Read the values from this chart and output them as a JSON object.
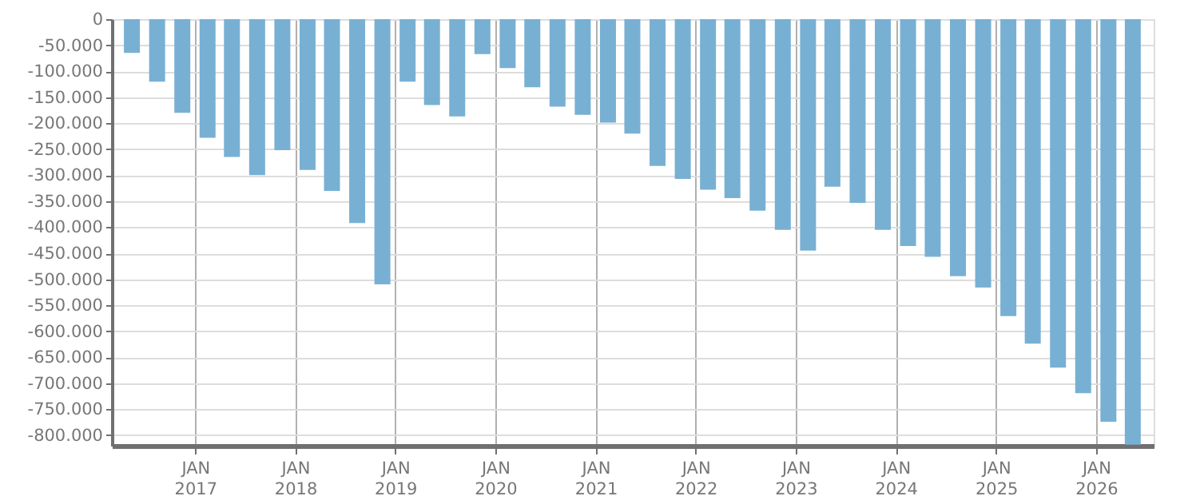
{
  "chart_data": {
    "type": "bar",
    "color": "#78b0d3",
    "grid": true,
    "x": [
      "2016-05-15",
      "2016-08-15",
      "2016-11-15",
      "2017-02-15",
      "2017-05-15",
      "2017-08-15",
      "2017-11-15",
      "2018-02-15",
      "2018-05-15",
      "2018-08-15",
      "2018-11-15",
      "2019-02-15",
      "2019-05-15",
      "2019-08-15",
      "2019-11-15",
      "2020-02-15",
      "2020-05-15",
      "2020-08-15",
      "2020-11-15",
      "2021-02-15",
      "2021-05-15",
      "2021-08-15",
      "2021-11-15",
      "2022-02-15",
      "2022-05-15",
      "2022-08-15",
      "2022-11-15",
      "2023-02-15",
      "2023-05-15",
      "2023-08-15",
      "2023-11-15",
      "2024-02-15",
      "2024-05-15",
      "2024-08-15",
      "2024-11-15",
      "2025-02-15",
      "2025-05-15",
      "2025-08-15",
      "2025-11-15",
      "2026-02-15",
      "2026-05-15"
    ],
    "values": [
      -65000,
      -120000,
      -180000,
      -228000,
      -265000,
      -300000,
      -252000,
      -290000,
      -330000,
      -392000,
      -510000,
      -120000,
      -165000,
      -187000,
      -67000,
      -94000,
      -131000,
      -168000,
      -184000,
      -199000,
      -220000,
      -282000,
      -307000,
      -328000,
      -344000,
      -368000,
      -405000,
      -445000,
      -322000,
      -353000,
      -405000,
      -436000,
      -457000,
      -494000,
      -516000,
      -571000,
      -624000,
      -670000,
      -719000,
      -774000,
      -818000
    ],
    "xlim": [
      "2016-04-01",
      "2026-07-01"
    ],
    "xticks": [
      {
        "value": "2017-01-01",
        "label": "JAN 2017"
      },
      {
        "value": "2018-01-01",
        "label": "JAN 2018"
      },
      {
        "value": "2019-01-01",
        "label": "JAN 2019"
      },
      {
        "value": "2020-01-01",
        "label": "JAN 2020"
      },
      {
        "value": "2021-01-01",
        "label": "JAN 2021"
      },
      {
        "value": "2022-01-01",
        "label": "JAN 2022"
      },
      {
        "value": "2023-01-01",
        "label": "JAN 2023"
      },
      {
        "value": "2024-01-01",
        "label": "JAN 2024"
      },
      {
        "value": "2025-01-01",
        "label": "JAN 2025"
      },
      {
        "value": "2026-01-01",
        "label": "JAN 2026"
      }
    ],
    "ylim": [
      -820000,
      0
    ],
    "yticks": [
      {
        "value": 0,
        "label": "0"
      },
      {
        "value": -50000,
        "label": "-50.000"
      },
      {
        "value": -100000,
        "label": "-100.000"
      },
      {
        "value": -150000,
        "label": "-150.000"
      },
      {
        "value": -200000,
        "label": "-200.000"
      },
      {
        "value": -250000,
        "label": "-250.000"
      },
      {
        "value": -300000,
        "label": "-300.000"
      },
      {
        "value": -350000,
        "label": "-350.000"
      },
      {
        "value": -400000,
        "label": "-400.000"
      },
      {
        "value": -450000,
        "label": "-450.000"
      },
      {
        "value": -500000,
        "label": "-500.000"
      },
      {
        "value": -550000,
        "label": "-550.000"
      },
      {
        "value": -600000,
        "label": "-600.000"
      },
      {
        "value": -650000,
        "label": "-650.000"
      },
      {
        "value": -700000,
        "label": "-700.000"
      },
      {
        "value": -750000,
        "label": "-750.000"
      },
      {
        "value": -800000,
        "label": "-800.000"
      }
    ]
  }
}
